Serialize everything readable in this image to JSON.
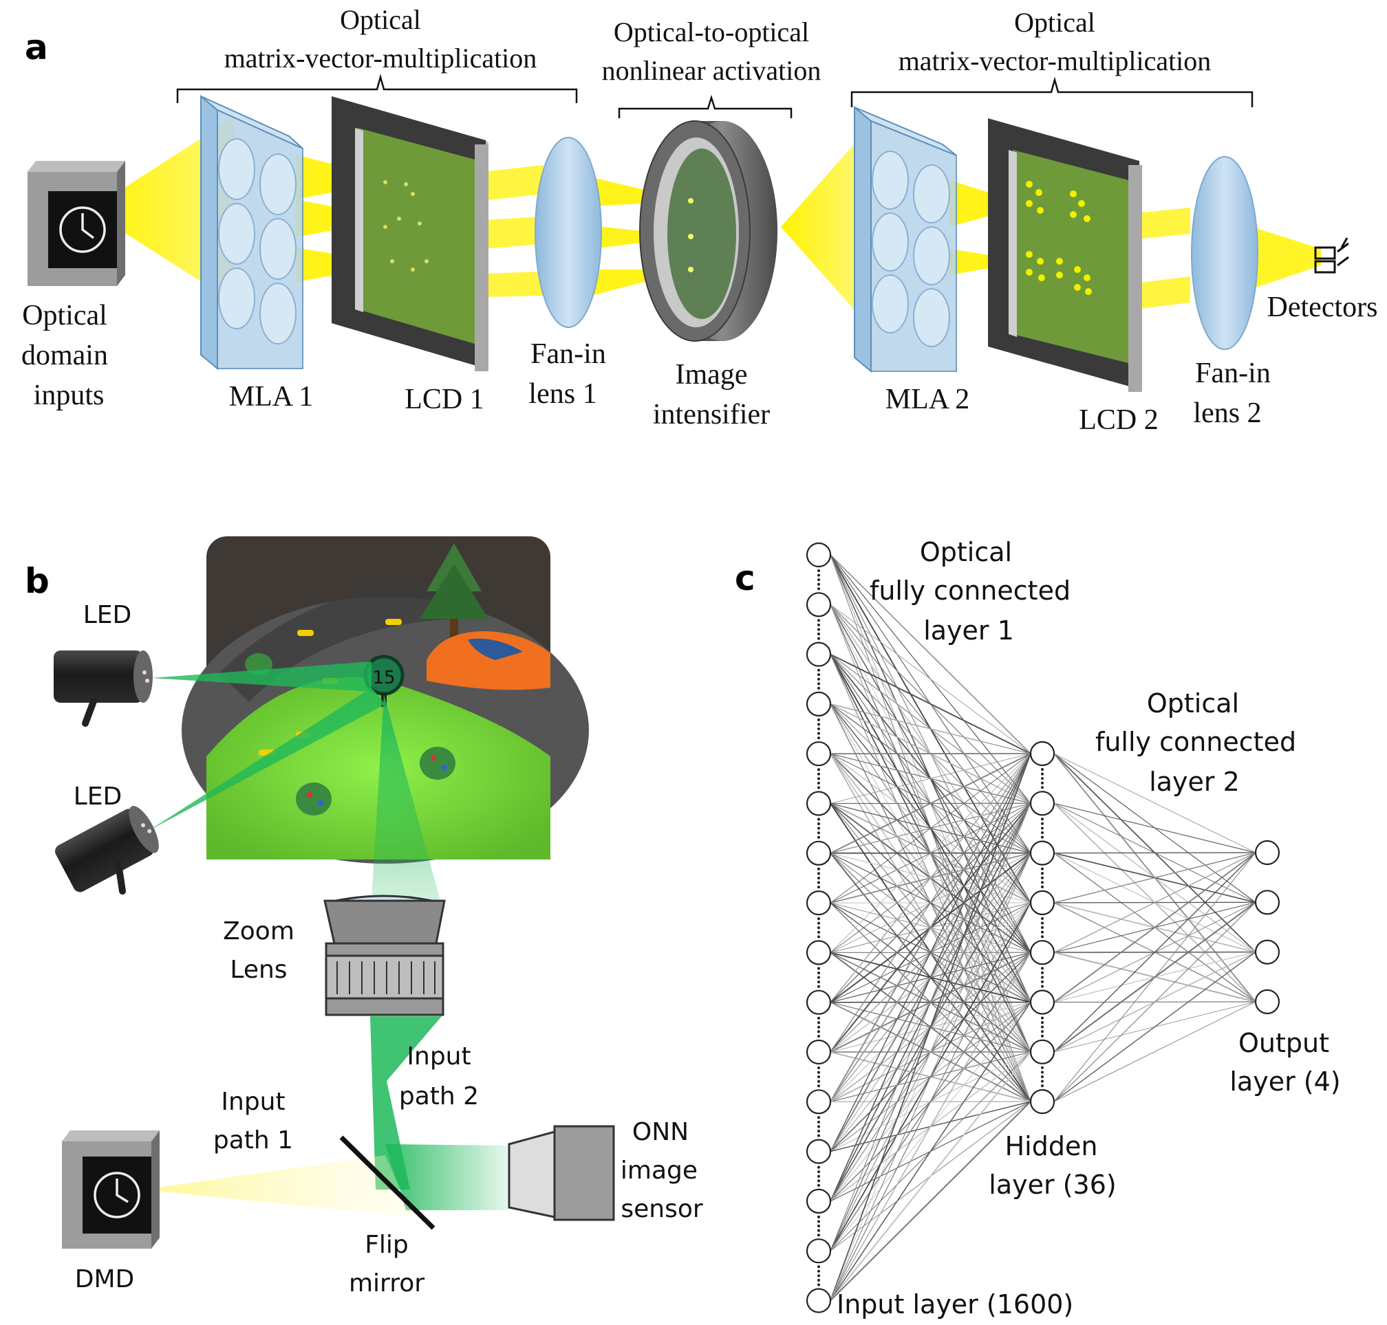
{
  "panel_a": {
    "letter": "a",
    "brace_1_title": [
      "Optical",
      "matrix-vector-multiplication"
    ],
    "brace_2_title": [
      "Optical-to-optical",
      "nonlinear activation"
    ],
    "brace_3_title": [
      "Optical",
      "matrix-vector-multiplication"
    ],
    "inputs_label": [
      "Optical",
      "domain",
      "inputs"
    ],
    "mla1": "MLA 1",
    "lcd1": "LCD 1",
    "fanin1": [
      "Fan-in",
      "lens 1"
    ],
    "intensifier": [
      "Image",
      "intensifier"
    ],
    "mla2": "MLA 2",
    "lcd2": "LCD 2",
    "fanin2": [
      "Fan-in",
      "lens 2"
    ],
    "detectors": "Detectors"
  },
  "panel_b": {
    "letter": "b",
    "led_top": "LED",
    "led_bottom": "LED",
    "sign_number": "15",
    "zoom_lens": [
      "Zoom",
      "Lens"
    ],
    "input_path_2": [
      "Input",
      "path 2"
    ],
    "input_path_1": [
      "Input",
      "path 1"
    ],
    "onn_sensor": [
      "ONN",
      "image",
      "sensor"
    ],
    "dmd": "DMD",
    "flip_mirror": [
      "Flip",
      "mirror"
    ]
  },
  "panel_c": {
    "letter": "c",
    "fc1_label": [
      "Optical",
      "fully connected",
      "layer 1"
    ],
    "fc2_label": [
      "Optical",
      "fully connected",
      "layer 2"
    ],
    "input_layer": "Input layer (1600)",
    "hidden_layer": [
      "Hidden",
      "layer (36)"
    ],
    "output_layer": [
      "Output",
      "layer (4)"
    ],
    "input_nodes_drawn": 16,
    "hidden_nodes_drawn": 8,
    "output_nodes_drawn": 4
  },
  "colors": {
    "beam_yellow": "#fff200",
    "beam_green": "#1fb85a",
    "lcd_green": "#6e9a3a",
    "mla_blue": "#b7d3ea",
    "lens_blue": "#a9cbe6",
    "frame_dark": "#3a3a3a",
    "scene_green": "#7fe03c"
  }
}
